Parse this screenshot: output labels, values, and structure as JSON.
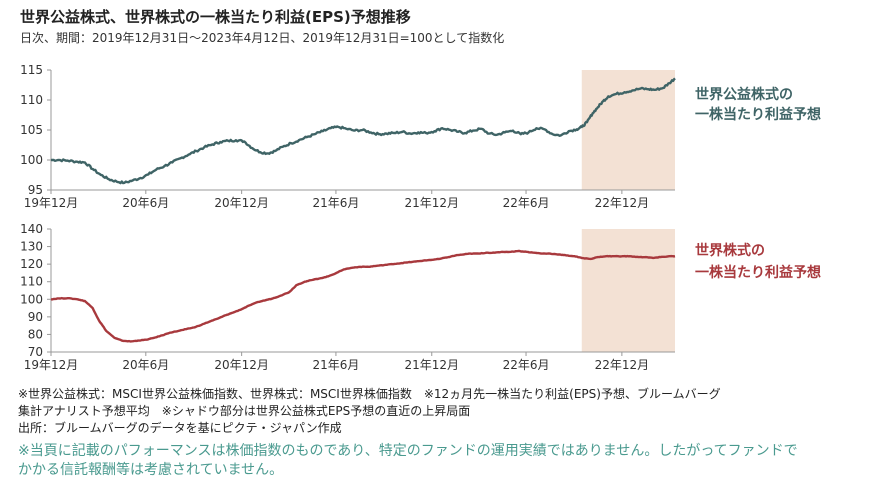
{
  "header": {
    "title": "世界公益株式、世界株式の一株当たり利益(EPS)予想推移",
    "subtitle": "日次、期間：2019年12月31日～2023年4月12日、2019年12月31日=100として指数化"
  },
  "colors": {
    "top_series": "#3f6466",
    "bottom_series": "#a8393d",
    "shade": "#f3e1d4",
    "axis": "#999999"
  },
  "chart_data": [
    {
      "type": "line",
      "title": "",
      "x_tick_labels": [
        "19年12月",
        "20年6月",
        "20年12月",
        "21年6月",
        "21年12月",
        "22年6月",
        "22年12月"
      ],
      "x_tick_dates": [
        "2019-12-31",
        "2020-06-30",
        "2020-12-31",
        "2021-06-30",
        "2021-12-31",
        "2022-06-30",
        "2022-12-31"
      ],
      "x_range": [
        "2019-12-31",
        "2023-04-12"
      ],
      "y_ticks": [
        95,
        100,
        105,
        110,
        115
      ],
      "ylim": [
        95,
        115
      ],
      "shade_start": "2022-10-15",
      "series": [
        {
          "name": "世界公益株式の一株当たり利益予想",
          "label_lines": [
            "世界公益株式の",
            "一株当たり利益予想"
          ],
          "color": "#3f6466",
          "points": [
            [
              "2019-12-31",
              100.0
            ],
            [
              "2020-01-15",
              100.0
            ],
            [
              "2020-02-01",
              99.9
            ],
            [
              "2020-02-20",
              99.7
            ],
            [
              "2020-03-05",
              99.6
            ],
            [
              "2020-03-20",
              98.5
            ],
            [
              "2020-04-05",
              97.5
            ],
            [
              "2020-04-20",
              96.8
            ],
            [
              "2020-05-05",
              96.4
            ],
            [
              "2020-05-20",
              96.2
            ],
            [
              "2020-06-05",
              96.6
            ],
            [
              "2020-06-20",
              97.0
            ],
            [
              "2020-07-05",
              97.6
            ],
            [
              "2020-07-20",
              98.4
            ],
            [
              "2020-08-05",
              99.0
            ],
            [
              "2020-08-20",
              99.6
            ],
            [
              "2020-09-05",
              100.3
            ],
            [
              "2020-09-20",
              100.9
            ],
            [
              "2020-10-05",
              101.5
            ],
            [
              "2020-10-20",
              102.1
            ],
            [
              "2020-11-05",
              102.6
            ],
            [
              "2020-11-20",
              103.0
            ],
            [
              "2020-12-05",
              103.2
            ],
            [
              "2020-12-20",
              103.3
            ],
            [
              "2021-01-05",
              103.1
            ],
            [
              "2021-01-20",
              102.0
            ],
            [
              "2021-02-05",
              101.3
            ],
            [
              "2021-02-20",
              101.1
            ],
            [
              "2021-03-05",
              101.5
            ],
            [
              "2021-03-20",
              102.2
            ],
            [
              "2021-04-05",
              102.8
            ],
            [
              "2021-04-20",
              103.3
            ],
            [
              "2021-05-05",
              103.8
            ],
            [
              "2021-05-20",
              104.3
            ],
            [
              "2021-06-05",
              104.8
            ],
            [
              "2021-06-20",
              105.3
            ],
            [
              "2021-07-05",
              105.5
            ],
            [
              "2021-07-20",
              105.2
            ],
            [
              "2021-08-05",
              104.9
            ],
            [
              "2021-08-20",
              105.0
            ],
            [
              "2021-09-05",
              104.6
            ],
            [
              "2021-09-20",
              104.3
            ],
            [
              "2021-10-05",
              104.4
            ],
            [
              "2021-10-20",
              104.5
            ],
            [
              "2021-11-05",
              104.7
            ],
            [
              "2021-11-20",
              104.4
            ],
            [
              "2021-12-05",
              104.6
            ],
            [
              "2021-12-20",
              104.5
            ],
            [
              "2022-01-05",
              104.8
            ],
            [
              "2022-01-20",
              105.3
            ],
            [
              "2022-02-05",
              105.0
            ],
            [
              "2022-02-20",
              104.7
            ],
            [
              "2022-03-05",
              104.5
            ],
            [
              "2022-03-20",
              104.9
            ],
            [
              "2022-04-05",
              105.2
            ],
            [
              "2022-04-20",
              104.4
            ],
            [
              "2022-05-05",
              104.2
            ],
            [
              "2022-05-20",
              104.6
            ],
            [
              "2022-06-05",
              104.9
            ],
            [
              "2022-06-20",
              104.3
            ],
            [
              "2022-07-05",
              104.6
            ],
            [
              "2022-07-20",
              105.3
            ],
            [
              "2022-08-05",
              105.1
            ],
            [
              "2022-08-20",
              104.3
            ],
            [
              "2022-09-05",
              104.1
            ],
            [
              "2022-09-20",
              104.8
            ],
            [
              "2022-10-05",
              105.1
            ],
            [
              "2022-10-15",
              105.5
            ],
            [
              "2022-10-25",
              106.3
            ],
            [
              "2022-11-05",
              107.8
            ],
            [
              "2022-11-15",
              108.8
            ],
            [
              "2022-11-25",
              109.8
            ],
            [
              "2022-12-05",
              110.6
            ],
            [
              "2022-12-20",
              111.0
            ],
            [
              "2023-01-05",
              111.3
            ],
            [
              "2023-01-20",
              111.6
            ],
            [
              "2023-02-05",
              111.9
            ],
            [
              "2023-02-20",
              111.8
            ],
            [
              "2023-03-05",
              111.7
            ],
            [
              "2023-03-20",
              112.0
            ],
            [
              "2023-04-01",
              112.8
            ],
            [
              "2023-04-12",
              113.6
            ]
          ]
        }
      ]
    },
    {
      "type": "line",
      "title": "",
      "x_tick_labels": [
        "19年12月",
        "20年6月",
        "20年12月",
        "21年6月",
        "21年12月",
        "22年6月",
        "22年12月"
      ],
      "x_tick_dates": [
        "2019-12-31",
        "2020-06-30",
        "2020-12-31",
        "2021-06-30",
        "2021-12-31",
        "2022-06-30",
        "2022-12-31"
      ],
      "x_range": [
        "2019-12-31",
        "2023-04-12"
      ],
      "y_ticks": [
        70,
        80,
        90,
        100,
        110,
        120,
        130,
        140
      ],
      "ylim": [
        70,
        140
      ],
      "shade_start": "2022-10-15",
      "series": [
        {
          "name": "世界株式の一株当たり利益予想",
          "label_lines": [
            "世界株式の",
            "一株当たり利益予想"
          ],
          "color": "#a8393d",
          "points": [
            [
              "2019-12-31",
              100.0
            ],
            [
              "2020-01-15",
              100.5
            ],
            [
              "2020-02-01",
              100.6
            ],
            [
              "2020-02-20",
              100.0
            ],
            [
              "2020-03-05",
              99.0
            ],
            [
              "2020-03-20",
              95.0
            ],
            [
              "2020-04-01",
              88.0
            ],
            [
              "2020-04-15",
              82.0
            ],
            [
              "2020-05-01",
              78.0
            ],
            [
              "2020-05-15",
              76.5
            ],
            [
              "2020-06-01",
              76.0
            ],
            [
              "2020-06-15",
              76.5
            ],
            [
              "2020-07-01",
              77.0
            ],
            [
              "2020-07-15",
              78.0
            ],
            [
              "2020-08-01",
              79.5
            ],
            [
              "2020-08-15",
              81.0
            ],
            [
              "2020-09-01",
              82.0
            ],
            [
              "2020-09-15",
              83.0
            ],
            [
              "2020-10-01",
              84.0
            ],
            [
              "2020-10-15",
              85.5
            ],
            [
              "2020-11-01",
              87.5
            ],
            [
              "2020-11-15",
              89.0
            ],
            [
              "2020-12-01",
              91.0
            ],
            [
              "2020-12-15",
              92.5
            ],
            [
              "2021-01-01",
              94.5
            ],
            [
              "2021-01-15",
              96.5
            ],
            [
              "2021-02-01",
              98.5
            ],
            [
              "2021-02-15",
              99.5
            ],
            [
              "2021-03-01",
              100.5
            ],
            [
              "2021-03-15",
              102.0
            ],
            [
              "2021-04-01",
              104.0
            ],
            [
              "2021-04-15",
              108.0
            ],
            [
              "2021-05-01",
              110.0
            ],
            [
              "2021-05-15",
              111.0
            ],
            [
              "2021-06-01",
              112.0
            ],
            [
              "2021-06-15",
              113.0
            ],
            [
              "2021-07-01",
              115.0
            ],
            [
              "2021-07-15",
              117.0
            ],
            [
              "2021-08-01",
              118.0
            ],
            [
              "2021-08-15",
              118.5
            ],
            [
              "2021-09-01",
              118.5
            ],
            [
              "2021-09-15",
              119.0
            ],
            [
              "2021-10-01",
              119.5
            ],
            [
              "2021-10-15",
              120.0
            ],
            [
              "2021-11-01",
              120.5
            ],
            [
              "2021-11-15",
              121.0
            ],
            [
              "2021-12-01",
              121.5
            ],
            [
              "2021-12-15",
              122.0
            ],
            [
              "2022-01-01",
              122.5
            ],
            [
              "2022-01-15",
              123.0
            ],
            [
              "2022-02-01",
              124.0
            ],
            [
              "2022-02-15",
              125.0
            ],
            [
              "2022-03-01",
              125.5
            ],
            [
              "2022-03-15",
              126.0
            ],
            [
              "2022-04-01",
              126.0
            ],
            [
              "2022-04-15",
              126.5
            ],
            [
              "2022-05-01",
              126.5
            ],
            [
              "2022-05-15",
              127.0
            ],
            [
              "2022-06-01",
              127.0
            ],
            [
              "2022-06-15",
              127.5
            ],
            [
              "2022-07-01",
              127.0
            ],
            [
              "2022-07-15",
              126.5
            ],
            [
              "2022-08-01",
              126.0
            ],
            [
              "2022-08-15",
              126.0
            ],
            [
              "2022-09-01",
              125.5
            ],
            [
              "2022-09-15",
              125.0
            ],
            [
              "2022-10-01",
              124.5
            ],
            [
              "2022-10-15",
              123.5
            ],
            [
              "2022-11-01",
              123.0
            ],
            [
              "2022-11-15",
              124.0
            ],
            [
              "2022-12-01",
              124.5
            ],
            [
              "2022-12-15",
              124.5
            ],
            [
              "2023-01-01",
              124.5
            ],
            [
              "2023-01-15",
              124.5
            ],
            [
              "2023-02-01",
              124.0
            ],
            [
              "2023-02-15",
              124.0
            ],
            [
              "2023-03-01",
              123.5
            ],
            [
              "2023-03-15",
              124.0
            ],
            [
              "2023-04-01",
              124.5
            ],
            [
              "2023-04-12",
              124.5
            ]
          ]
        }
      ]
    }
  ],
  "notes": {
    "line1": "※世界公益株式：MSCI世界公益株価指数、世界株式：MSCI世界株価指数　※12ヵ月先一株当たり利益(EPS)予想、ブルームバーグ",
    "line2": "集計アナリスト予想平均　※シャドウ部分は世界公益株式EPS予想の直近の上昇局面",
    "line3": "出所：ブルームバーグのデータを基にピクテ・ジャパン作成"
  },
  "disclaimer": {
    "line1": "※当頁に記載のパフォーマンスは株価指数のものであり、特定のファンドの運用実績ではありません。したがってファンドで",
    "line2": "かかる信託報酬等は考慮されていません。"
  }
}
